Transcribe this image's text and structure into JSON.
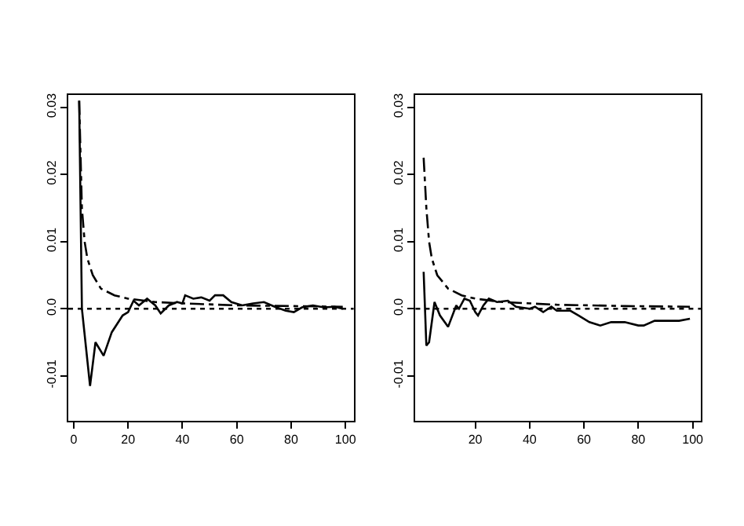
{
  "chart_data": [
    {
      "type": "line",
      "xlim": [
        -2,
        103
      ],
      "ylim": [
        -0.0167,
        0.0319
      ],
      "xticks": [
        0,
        20,
        40,
        60,
        80,
        100
      ],
      "yticks": [
        {
          "value": -0.01,
          "label": "-0.01"
        },
        {
          "value": 0,
          "label": "0.0"
        },
        {
          "value": 0.01,
          "label": "0.01"
        },
        {
          "value": 0.02,
          "label": "0.02"
        },
        {
          "value": 0.03,
          "label": "0.03"
        }
      ],
      "ref_lines": [
        {
          "axis": "y",
          "value": 0,
          "color": "#000000",
          "line_style": "dotted"
        }
      ],
      "series": [
        {
          "color": "#000000",
          "line_style": "solid",
          "x": [
            2,
            3,
            6,
            8,
            11,
            14,
            18,
            20,
            22,
            24,
            27,
            30,
            32,
            35,
            38,
            40,
            41,
            44,
            47,
            50,
            52,
            55,
            58,
            62,
            66,
            70,
            74,
            78,
            81,
            84,
            88,
            92,
            96,
            99
          ],
          "values": [
            0.031,
            0.0,
            -0.0115,
            -0.005,
            -0.007,
            -0.0035,
            -0.001,
            -0.0005,
            0.0012,
            0.0005,
            0.0015,
            0.0005,
            -0.0007,
            0.0005,
            0.001,
            0.0008,
            0.002,
            0.0015,
            0.0017,
            0.0012,
            0.002,
            0.002,
            0.001,
            0.0005,
            0.0008,
            0.001,
            0.0003,
            -0.0003,
            -0.0005,
            0.0002,
            0.0005,
            0.0002,
            0.0003,
            0.0
          ]
        },
        {
          "color": "#000000",
          "line_style": "dashed",
          "x": [
            2,
            3,
            4,
            5,
            7,
            10,
            15,
            20,
            30,
            40,
            60,
            80,
            99
          ],
          "values": [
            0.031,
            0.015,
            0.01,
            0.0075,
            0.005,
            0.003,
            0.002,
            0.0015,
            0.001,
            0.0008,
            0.0005,
            0.0004,
            0.0003
          ]
        }
      ]
    },
    {
      "type": "line",
      "xlim": [
        -2,
        103
      ],
      "ylim": [
        -0.0167,
        0.0319
      ],
      "xticks": [
        20,
        40,
        60,
        80,
        100
      ],
      "yticks": [
        {
          "value": -0.01,
          "label": "-0.01"
        },
        {
          "value": 0,
          "label": "0.0"
        },
        {
          "value": 0.01,
          "label": "0.01"
        },
        {
          "value": 0.02,
          "label": "0.02"
        },
        {
          "value": 0.03,
          "label": "0.03"
        }
      ],
      "ref_lines": [
        {
          "axis": "y",
          "value": 0,
          "color": "#000000",
          "line_style": "dotted"
        }
      ],
      "series": [
        {
          "color": "#000000",
          "line_style": "solid",
          "x": [
            1,
            2,
            3,
            5,
            7,
            10,
            13,
            14,
            16,
            18,
            20,
            21,
            23,
            25,
            28,
            32,
            35,
            40,
            42,
            45,
            48,
            50,
            55,
            58,
            62,
            66,
            70,
            75,
            80,
            82,
            86,
            90,
            95,
            99
          ],
          "values": [
            0.0055,
            -0.0055,
            -0.005,
            0.001,
            -0.001,
            -0.0027,
            0.0005,
            0.0,
            0.0015,
            0.0012,
            -0.0005,
            -0.001,
            0.0005,
            0.0015,
            0.001,
            0.0012,
            0.0003,
            0.0,
            0.0003,
            -0.0005,
            0.0003,
            -0.0003,
            -0.0003,
            -0.001,
            -0.002,
            -0.0025,
            -0.002,
            -0.002,
            -0.0025,
            -0.0025,
            -0.0018,
            -0.0018,
            -0.0018,
            -0.0015
          ]
        },
        {
          "color": "#000000",
          "line_style": "dashed",
          "x": [
            1,
            2,
            3,
            4,
            6,
            10,
            15,
            20,
            30,
            50,
            75,
            99
          ],
          "values": [
            0.0225,
            0.015,
            0.01,
            0.0075,
            0.005,
            0.003,
            0.002,
            0.0015,
            0.001,
            0.0006,
            0.0004,
            0.0003
          ]
        }
      ]
    }
  ]
}
